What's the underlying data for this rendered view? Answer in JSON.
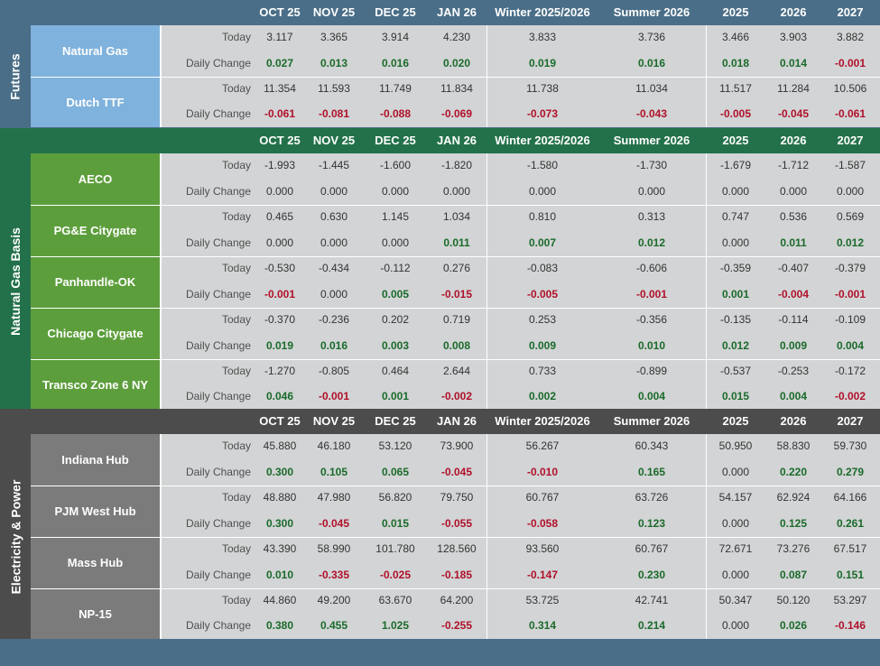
{
  "columns": [
    "OCT 25",
    "NOV 25",
    "DEC 25",
    "JAN 26",
    "Winter 2025/2026",
    "Summer 2026",
    "2025",
    "2026",
    "2027"
  ],
  "row_labels": {
    "today": "Today",
    "change": "Daily Change"
  },
  "colors": {
    "futures_header": "#4a6e87",
    "futures_name": "#7fb2dc",
    "basis_header": "#23714a",
    "basis_name": "#5d9e3c",
    "power_header": "#4c4c4c",
    "power_name": "#7b7b7b",
    "positive": "#1a6a2a",
    "negative": "#b0102a",
    "cell_bg": "#d2d4d5"
  },
  "sections": [
    {
      "title": "Futures",
      "theme": "futures",
      "rows": [
        {
          "name": "Natural Gas",
          "today": [
            "3.117",
            "3.365",
            "3.914",
            "4.230",
            "3.833",
            "3.736",
            "3.466",
            "3.903",
            "3.882"
          ],
          "change": [
            "0.027",
            "0.013",
            "0.016",
            "0.020",
            "0.019",
            "0.016",
            "0.018",
            "0.014",
            "-0.001"
          ]
        },
        {
          "name": "Dutch TTF",
          "today": [
            "11.354",
            "11.593",
            "11.749",
            "11.834",
            "11.738",
            "11.034",
            "11.517",
            "11.284",
            "10.506"
          ],
          "change": [
            "-0.061",
            "-0.081",
            "-0.088",
            "-0.069",
            "-0.073",
            "-0.043",
            "-0.005",
            "-0.045",
            "-0.061"
          ]
        }
      ]
    },
    {
      "title": "Natural Gas Basis",
      "theme": "basis",
      "rows": [
        {
          "name": "AECO",
          "today": [
            "-1.993",
            "-1.445",
            "-1.600",
            "-1.820",
            "-1.580",
            "-1.730",
            "-1.679",
            "-1.712",
            "-1.587"
          ],
          "change": [
            "0.000",
            "0.000",
            "0.000",
            "0.000",
            "0.000",
            "0.000",
            "0.000",
            "0.000",
            "0.000"
          ]
        },
        {
          "name": "PG&E Citygate",
          "today": [
            "0.465",
            "0.630",
            "1.145",
            "1.034",
            "0.810",
            "0.313",
            "0.747",
            "0.536",
            "0.569"
          ],
          "change": [
            "0.000",
            "0.000",
            "0.000",
            "0.011",
            "0.007",
            "0.012",
            "0.000",
            "0.011",
            "0.012"
          ]
        },
        {
          "name": "Panhandle-OK",
          "today": [
            "-0.530",
            "-0.434",
            "-0.112",
            "0.276",
            "-0.083",
            "-0.606",
            "-0.359",
            "-0.407",
            "-0.379"
          ],
          "change": [
            "-0.001",
            "0.000",
            "0.005",
            "-0.015",
            "-0.005",
            "-0.001",
            "0.001",
            "-0.004",
            "-0.001"
          ]
        },
        {
          "name": "Chicago Citygate",
          "today": [
            "-0.370",
            "-0.236",
            "0.202",
            "0.719",
            "0.253",
            "-0.356",
            "-0.135",
            "-0.114",
            "-0.109"
          ],
          "change": [
            "0.019",
            "0.016",
            "0.003",
            "0.008",
            "0.009",
            "0.010",
            "0.012",
            "0.009",
            "0.004"
          ]
        },
        {
          "name": "Transco Zone 6 NY",
          "today": [
            "-1.270",
            "-0.805",
            "0.464",
            "2.644",
            "0.733",
            "-0.899",
            "-0.537",
            "-0.253",
            "-0.172"
          ],
          "change": [
            "0.046",
            "-0.001",
            "0.001",
            "-0.002",
            "0.002",
            "0.004",
            "0.015",
            "0.004",
            "-0.002"
          ]
        }
      ]
    },
    {
      "title": "Electricity & Power",
      "theme": "power",
      "rows": [
        {
          "name": "Indiana Hub",
          "today": [
            "45.880",
            "46.180",
            "53.120",
            "73.900",
            "56.267",
            "60.343",
            "50.950",
            "58.830",
            "59.730"
          ],
          "change": [
            "0.300",
            "0.105",
            "0.065",
            "-0.045",
            "-0.010",
            "0.165",
            "0.000",
            "0.220",
            "0.279"
          ]
        },
        {
          "name": "PJM West Hub",
          "today": [
            "48.880",
            "47.980",
            "56.820",
            "79.750",
            "60.767",
            "63.726",
            "54.157",
            "62.924",
            "64.166"
          ],
          "change": [
            "0.300",
            "-0.045",
            "0.015",
            "-0.055",
            "-0.058",
            "0.123",
            "0.000",
            "0.125",
            "0.261"
          ]
        },
        {
          "name": "Mass Hub",
          "today": [
            "43.390",
            "58.990",
            "101.780",
            "128.560",
            "93.560",
            "60.767",
            "72.671",
            "73.276",
            "67.517"
          ],
          "change": [
            "0.010",
            "-0.335",
            "-0.025",
            "-0.185",
            "-0.147",
            "0.230",
            "0.000",
            "0.087",
            "0.151"
          ]
        },
        {
          "name": "NP-15",
          "today": [
            "44.860",
            "49.200",
            "63.670",
            "64.200",
            "53.725",
            "42.741",
            "50.347",
            "50.120",
            "53.297"
          ],
          "change": [
            "0.380",
            "0.455",
            "1.025",
            "-0.255",
            "0.314",
            "0.214",
            "0.000",
            "0.026",
            "-0.146"
          ]
        }
      ]
    }
  ]
}
